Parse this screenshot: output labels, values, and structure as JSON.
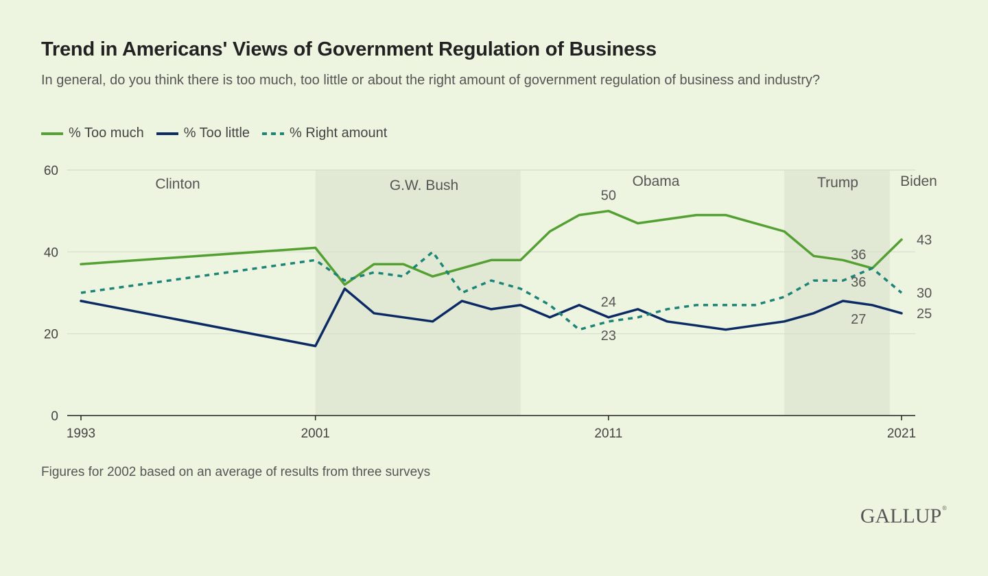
{
  "title": "Trend in Americans' Views of Government Regulation of Business",
  "subtitle": "In general, do you think there is too much, too little or about the right amount of government regulation of business and industry?",
  "footnote": "Figures for 2002 based on an average of results from three surveys",
  "logo": "GALLUP",
  "colors": {
    "too_much": "#54a033",
    "too_little": "#0c2a64",
    "right_amount": "#1c8577",
    "era_shade": "#e1e9d4",
    "grid": "#d6decb",
    "axis": "#222222"
  },
  "chart_data": {
    "type": "line",
    "xlim": [
      1993,
      2021
    ],
    "ylim": [
      0,
      60
    ],
    "yticks": [
      0,
      20,
      40,
      60
    ],
    "xticks": [
      1993,
      2001,
      2011,
      2021
    ],
    "grid": true,
    "legend_position": "top-left",
    "x": [
      1993,
      2001,
      2002,
      2003,
      2004,
      2005,
      2006,
      2007,
      2008,
      2009,
      2010,
      2011,
      2012,
      2013,
      2014,
      2015,
      2016,
      2017,
      2018,
      2019,
      2020,
      2021
    ],
    "series": [
      {
        "name": "% Too much",
        "style": "solid",
        "color": "#54a033",
        "values": [
          37,
          41,
          32,
          37,
          37,
          34,
          36,
          38,
          38,
          45,
          49,
          50,
          47,
          48,
          49,
          49,
          47,
          45,
          39,
          38,
          36,
          43
        ]
      },
      {
        "name": "% Too little",
        "style": "solid",
        "color": "#0c2a64",
        "values": [
          28,
          17,
          31,
          25,
          24,
          23,
          28,
          26,
          27,
          24,
          27,
          24,
          26,
          23,
          22,
          21,
          22,
          23,
          25,
          28,
          27,
          25
        ]
      },
      {
        "name": "% Right amount",
        "style": "dashed",
        "color": "#1c8577",
        "values": [
          30,
          38,
          33,
          35,
          34,
          40,
          30,
          33,
          31,
          27,
          21,
          23,
          24,
          26,
          27,
          27,
          27,
          29,
          33,
          33,
          36,
          30
        ]
      }
    ],
    "eras": [
      {
        "label": "Clinton",
        "start": 1993,
        "end": 2001,
        "shaded": false
      },
      {
        "label": "G.W. Bush",
        "start": 2001,
        "end": 2008,
        "shaded": true
      },
      {
        "label": "Obama",
        "start": 2008,
        "end": 2017,
        "shaded": false
      },
      {
        "label": "Trump",
        "start": 2017,
        "end": 2020.6,
        "shaded": true
      },
      {
        "label": "Biden",
        "start": 2020.6,
        "end": 2021.5,
        "shaded": false
      }
    ],
    "data_labels": [
      {
        "text": "50",
        "x": 2011,
        "y": 50,
        "series": 0,
        "pos": "above"
      },
      {
        "text": "43",
        "x": 2021,
        "y": 43,
        "series": 0,
        "pos": "right"
      },
      {
        "text": "36",
        "x": 2020,
        "y": 36,
        "series": 0,
        "pos": "above-left"
      },
      {
        "text": "24",
        "x": 2011,
        "y": 24,
        "series": 1,
        "pos": "above"
      },
      {
        "text": "27",
        "x": 2020,
        "y": 27,
        "series": 1,
        "pos": "below-left"
      },
      {
        "text": "25",
        "x": 2021,
        "y": 25,
        "series": 1,
        "pos": "right"
      },
      {
        "text": "23",
        "x": 2011,
        "y": 23,
        "series": 2,
        "pos": "below"
      },
      {
        "text": "36",
        "x": 2020,
        "y": 36,
        "series": 2,
        "pos": "below-left"
      },
      {
        "text": "30",
        "x": 2021,
        "y": 30,
        "series": 2,
        "pos": "right"
      }
    ]
  }
}
